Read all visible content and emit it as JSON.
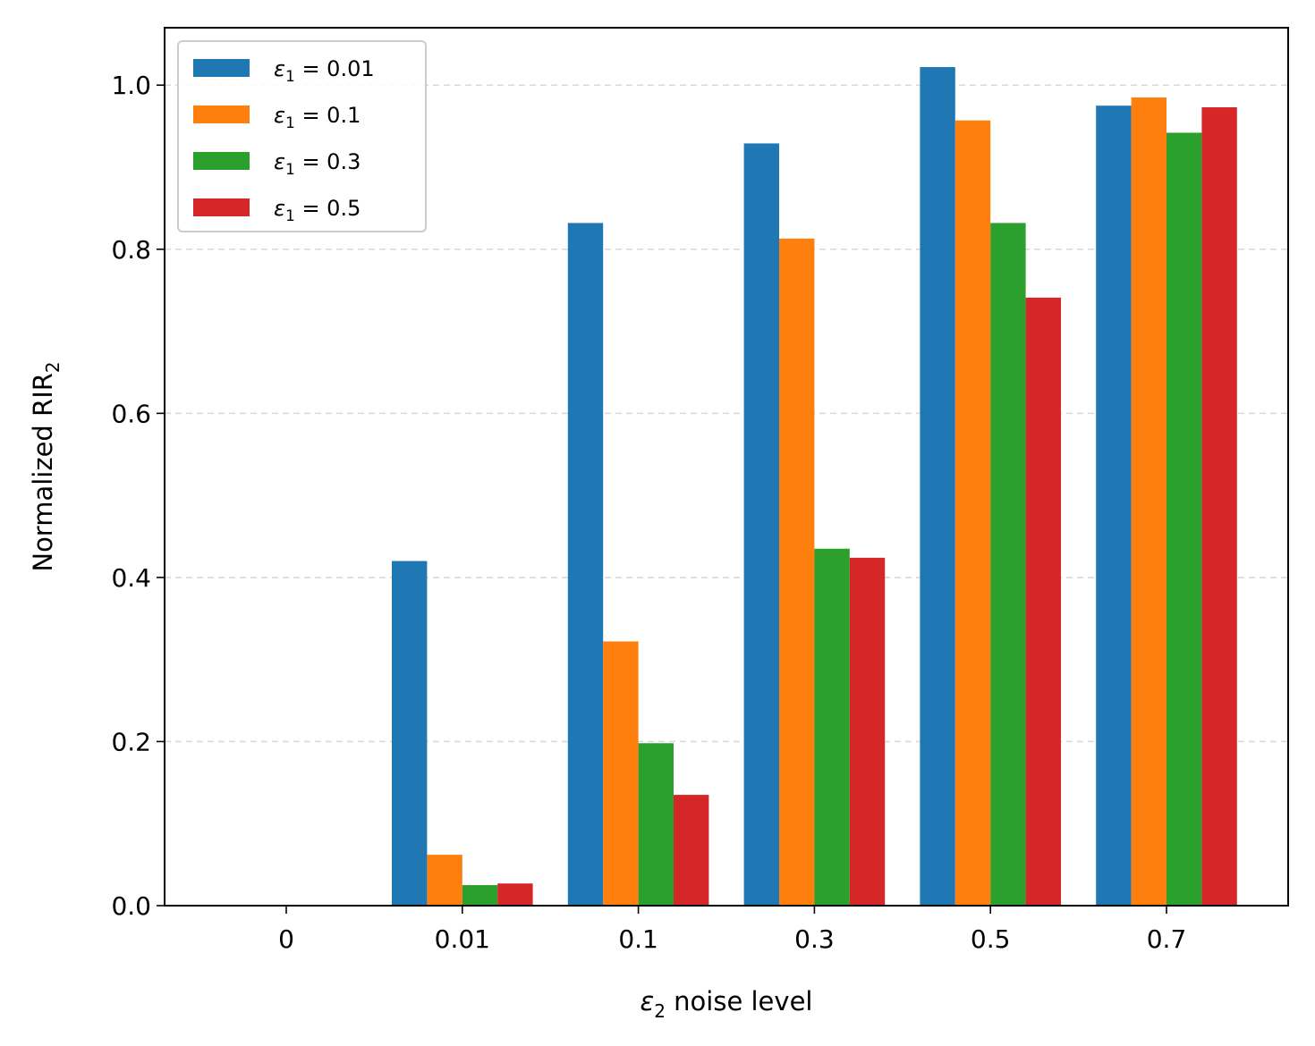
{
  "chart_data": {
    "type": "bar",
    "categories": [
      "0",
      "0.01",
      "0.1",
      "0.3",
      "0.5",
      "0.7"
    ],
    "series": [
      {
        "name": "ε1 = 0.01",
        "sym": "ε",
        "sub": "1",
        "rest": " = 0.01",
        "color": "#1f77b4",
        "values": [
          0,
          0.42,
          0.832,
          0.929,
          1.022,
          0.975
        ]
      },
      {
        "name": "ε1 = 0.1",
        "sym": "ε",
        "sub": "1",
        "rest": " = 0.1",
        "color": "#ff7f0e",
        "values": [
          0,
          0.062,
          0.322,
          0.813,
          0.957,
          0.985
        ]
      },
      {
        "name": "ε1 = 0.3",
        "sym": "ε",
        "sub": "1",
        "rest": " = 0.3",
        "color": "#2ca02c",
        "values": [
          0,
          0.025,
          0.198,
          0.435,
          0.832,
          0.942
        ]
      },
      {
        "name": "ε1 = 0.5",
        "sym": "ε",
        "sub": "1",
        "rest": " = 0.5",
        "color": "#d62728",
        "values": [
          0,
          0.027,
          0.135,
          0.424,
          0.741,
          0.973
        ]
      }
    ],
    "xlabel": {
      "sym": "ε",
      "sub": "2",
      "rest": " noise level"
    },
    "ylabel": {
      "main": "Normalized RIR",
      "sub": "2"
    },
    "ylim": [
      0,
      1.07
    ],
    "yticks": [
      "0.0",
      "0.2",
      "0.4",
      "0.6",
      "0.8",
      "1.0"
    ],
    "grid": "y-dashed",
    "legend_position": "top-left"
  }
}
